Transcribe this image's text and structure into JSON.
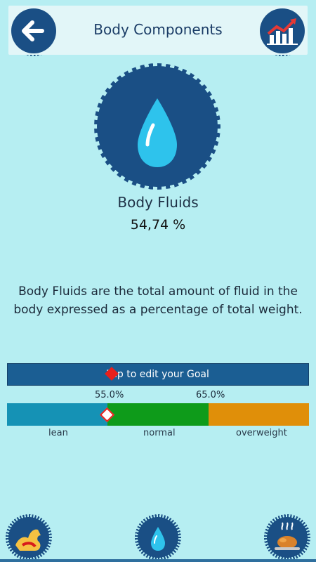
{
  "header": {
    "title": "Body Components",
    "back_icon": "arrow-left-icon",
    "chart_icon": "trend-chart-icon"
  },
  "hero": {
    "icon": "water-drop-icon",
    "label": "Body Fluids",
    "value": "54,74 %"
  },
  "description": "Body Fluids are the total amount of fluid in the body expressed as a percentage of total weight.",
  "goal": {
    "label": "Tap to edit your Goal"
  },
  "scale": {
    "threshold_low": "55.0%",
    "threshold_high": "65.0%",
    "labels": [
      "lean",
      "normal",
      "overweight"
    ],
    "colors": [
      "#1592b5",
      "#0e9b1a",
      "#e08f09"
    ],
    "marker_value": 54.74
  },
  "bottom_nav": [
    {
      "icon": "muscle-arm-icon"
    },
    {
      "icon": "water-drop-icon"
    },
    {
      "icon": "roast-chicken-icon"
    }
  ]
}
